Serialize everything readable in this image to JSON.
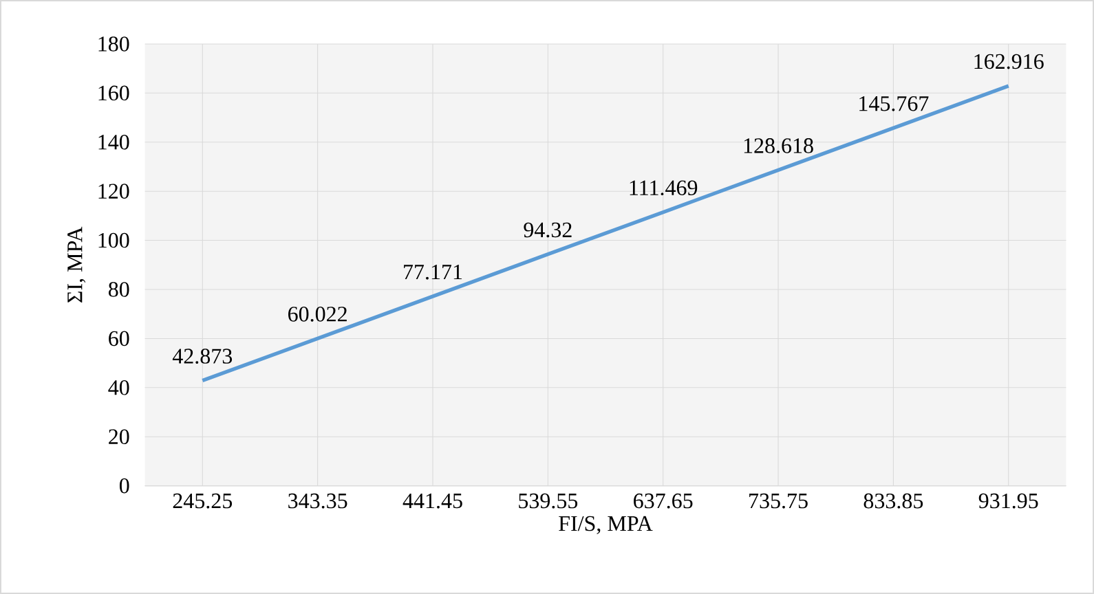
{
  "chart_data": {
    "type": "line",
    "xlabel": "FI/S, MPA",
    "ylabel": "ΣI, MPA",
    "categories": [
      "245.25",
      "343.35",
      "441.45",
      "539.55",
      "637.65",
      "735.75",
      "833.85",
      "931.95"
    ],
    "series": [
      {
        "color": "#5b9bd5",
        "values": [
          42.873,
          60.022,
          77.171,
          94.32,
          111.469,
          128.618,
          145.767,
          162.916
        ],
        "value_labels": [
          "42.873",
          "60.022",
          "77.171",
          "94.32",
          "111.469",
          "128.618",
          "145.767",
          "162.916"
        ]
      }
    ],
    "ylim": [
      0,
      180
    ],
    "yticks": [
      0,
      20,
      40,
      60,
      80,
      100,
      120,
      140,
      160,
      180
    ],
    "grid": true,
    "marker": "none",
    "line_style": "solid"
  }
}
